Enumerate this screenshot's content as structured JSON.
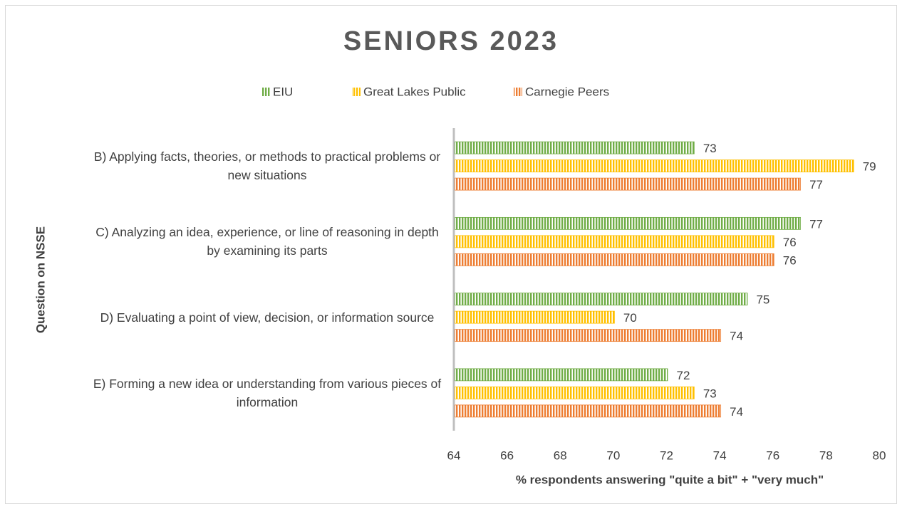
{
  "chart_data": {
    "type": "hbar",
    "title": "SENIORS 2023",
    "categories": [
      "B) Applying facts, theories, or methods to practical problems or new situations",
      "C) Analyzing an idea, experience, or line of reasoning in depth by examining its parts",
      "D) Evaluating a point of view, decision, or information source",
      "E) Forming a new idea or understanding from various pieces of information"
    ],
    "series": [
      {
        "name": "EIU",
        "color": "#70ad47",
        "values": [
          73,
          77,
          75,
          72
        ]
      },
      {
        "name": "Great Lakes Public",
        "color": "#ffc000",
        "values": [
          79,
          76,
          70,
          73
        ]
      },
      {
        "name": "Carnegie Peers",
        "color": "#ed7d31",
        "values": [
          77,
          76,
          74,
          74
        ]
      }
    ],
    "xlim": [
      64,
      80
    ],
    "xticks": [
      64,
      66,
      68,
      70,
      72,
      74,
      76,
      78,
      80
    ],
    "xlabel": "% respondents answering \"quite a bit\" + \"very much\"",
    "ylabel": "Question on NSSE",
    "legend": "top",
    "grid": false
  }
}
